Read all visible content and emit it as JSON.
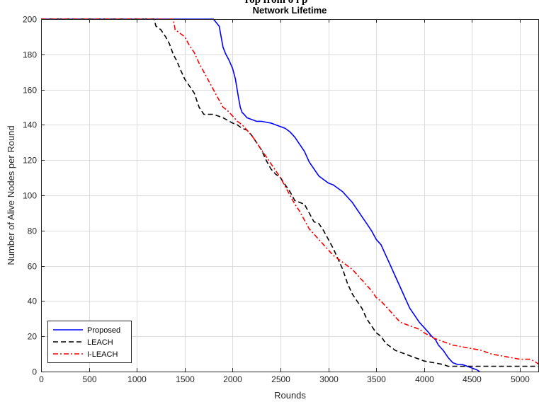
{
  "clipped_heading": "rop      from           o l     p",
  "chart_data": {
    "type": "line",
    "title": "Network Lifetime",
    "xlabel": "Rounds",
    "ylabel": "Number of Alive Nodes per Round",
    "xlim": [
      0,
      5200
    ],
    "ylim": [
      0,
      200
    ],
    "xticks": [
      0,
      500,
      1000,
      1500,
      2000,
      2500,
      3000,
      3500,
      4000,
      4500,
      5000
    ],
    "yticks": [
      0,
      20,
      40,
      60,
      80,
      100,
      120,
      140,
      160,
      180,
      200
    ],
    "grid": true,
    "legend_position": "bottom-left",
    "series": [
      {
        "name": "Proposed",
        "color": "#0000ff",
        "style": "solid",
        "x": [
          0,
          1800,
          1860,
          1880,
          1900,
          1930,
          1960,
          2000,
          2030,
          2060,
          2080,
          2100,
          2120,
          2150,
          2200,
          2250,
          2300,
          2400,
          2500,
          2550,
          2600,
          2650,
          2700,
          2750,
          2800,
          2850,
          2900,
          2950,
          3000,
          3050,
          3100,
          3150,
          3200,
          3250,
          3300,
          3350,
          3400,
          3450,
          3500,
          3550,
          3600,
          3650,
          3700,
          3750,
          3800,
          3850,
          3900,
          3950,
          4000,
          4050,
          4080,
          4120,
          4150,
          4200,
          4250,
          4300,
          4350,
          4400,
          4450,
          4500,
          4550,
          4580
        ],
        "y": [
          200,
          200,
          196,
          190,
          184,
          180,
          177,
          172,
          166,
          156,
          150,
          147,
          146,
          144,
          143,
          142,
          142,
          141,
          139,
          138,
          136,
          133,
          129,
          125,
          119,
          115,
          111,
          109,
          107,
          106,
          104,
          102,
          99,
          96,
          92,
          88,
          84,
          80,
          75,
          72,
          66,
          60,
          54,
          48,
          42,
          36,
          32,
          28,
          25,
          22,
          20,
          18,
          15,
          12,
          8,
          5,
          4,
          4,
          3,
          2,
          1,
          0
        ]
      },
      {
        "name": "LEACH",
        "color": "#000000",
        "style": "dashed",
        "x": [
          0,
          1180,
          1200,
          1250,
          1300,
          1340,
          1380,
          1420,
          1450,
          1500,
          1550,
          1600,
          1650,
          1700,
          1750,
          1800,
          1900,
          2000,
          2050,
          2100,
          2150,
          2200,
          2250,
          2300,
          2350,
          2400,
          2450,
          2500,
          2550,
          2600,
          2650,
          2700,
          2750,
          2800,
          2850,
          2900,
          2950,
          3000,
          3050,
          3100,
          3150,
          3200,
          3250,
          3300,
          3350,
          3400,
          3450,
          3500,
          3550,
          3600,
          3650,
          3700,
          3750,
          3800,
          3850,
          3900,
          3950,
          4000,
          4100,
          4200,
          4250,
          4300,
          4400,
          4500,
          4600,
          4700,
          4800,
          4900,
          5000,
          5100,
          5200
        ],
        "y": [
          200,
          200,
          196,
          194,
          190,
          186,
          180,
          176,
          172,
          166,
          162,
          158,
          150,
          146,
          146,
          146,
          144,
          141,
          140,
          138,
          137,
          134,
          130,
          126,
          120,
          115,
          112,
          110,
          106,
          102,
          97,
          96,
          95,
          90,
          85,
          84,
          80,
          75,
          70,
          64,
          58,
          50,
          44,
          40,
          36,
          30,
          26,
          22,
          20,
          16,
          14,
          12,
          11,
          10,
          9,
          8,
          7,
          6,
          5,
          4,
          3,
          3,
          3,
          3,
          3,
          3,
          3,
          3,
          3,
          3,
          3
        ]
      },
      {
        "name": "I-LEACH",
        "color": "#ff0000",
        "style": "dashdot",
        "x": [
          0,
          1380,
          1400,
          1450,
          1500,
          1550,
          1600,
          1650,
          1700,
          1750,
          1800,
          1850,
          1900,
          1950,
          2000,
          2050,
          2100,
          2150,
          2200,
          2250,
          2300,
          2350,
          2400,
          2450,
          2500,
          2550,
          2600,
          2650,
          2700,
          2750,
          2800,
          2850,
          2900,
          2950,
          3000,
          3050,
          3100,
          3150,
          3200,
          3250,
          3300,
          3350,
          3400,
          3450,
          3500,
          3550,
          3600,
          3650,
          3700,
          3750,
          3800,
          3850,
          3900,
          3950,
          4000,
          4100,
          4200,
          4300,
          4400,
          4500,
          4600,
          4700,
          4800,
          4900,
          5000,
          5100,
          5150,
          5200
        ],
        "y": [
          200,
          200,
          194,
          192,
          190,
          185,
          181,
          175,
          170,
          165,
          160,
          155,
          150,
          148,
          145,
          142,
          140,
          137,
          134,
          130,
          126,
          122,
          118,
          114,
          110,
          105,
          100,
          95,
          91,
          86,
          81,
          78,
          75,
          72,
          69,
          66,
          64,
          62,
          60,
          58,
          55,
          52,
          49,
          46,
          42,
          40,
          37,
          34,
          31,
          28,
          27,
          26,
          25,
          24,
          22,
          19,
          17,
          15,
          14,
          13,
          12,
          10,
          9,
          8,
          7,
          7,
          6,
          4
        ]
      }
    ]
  }
}
